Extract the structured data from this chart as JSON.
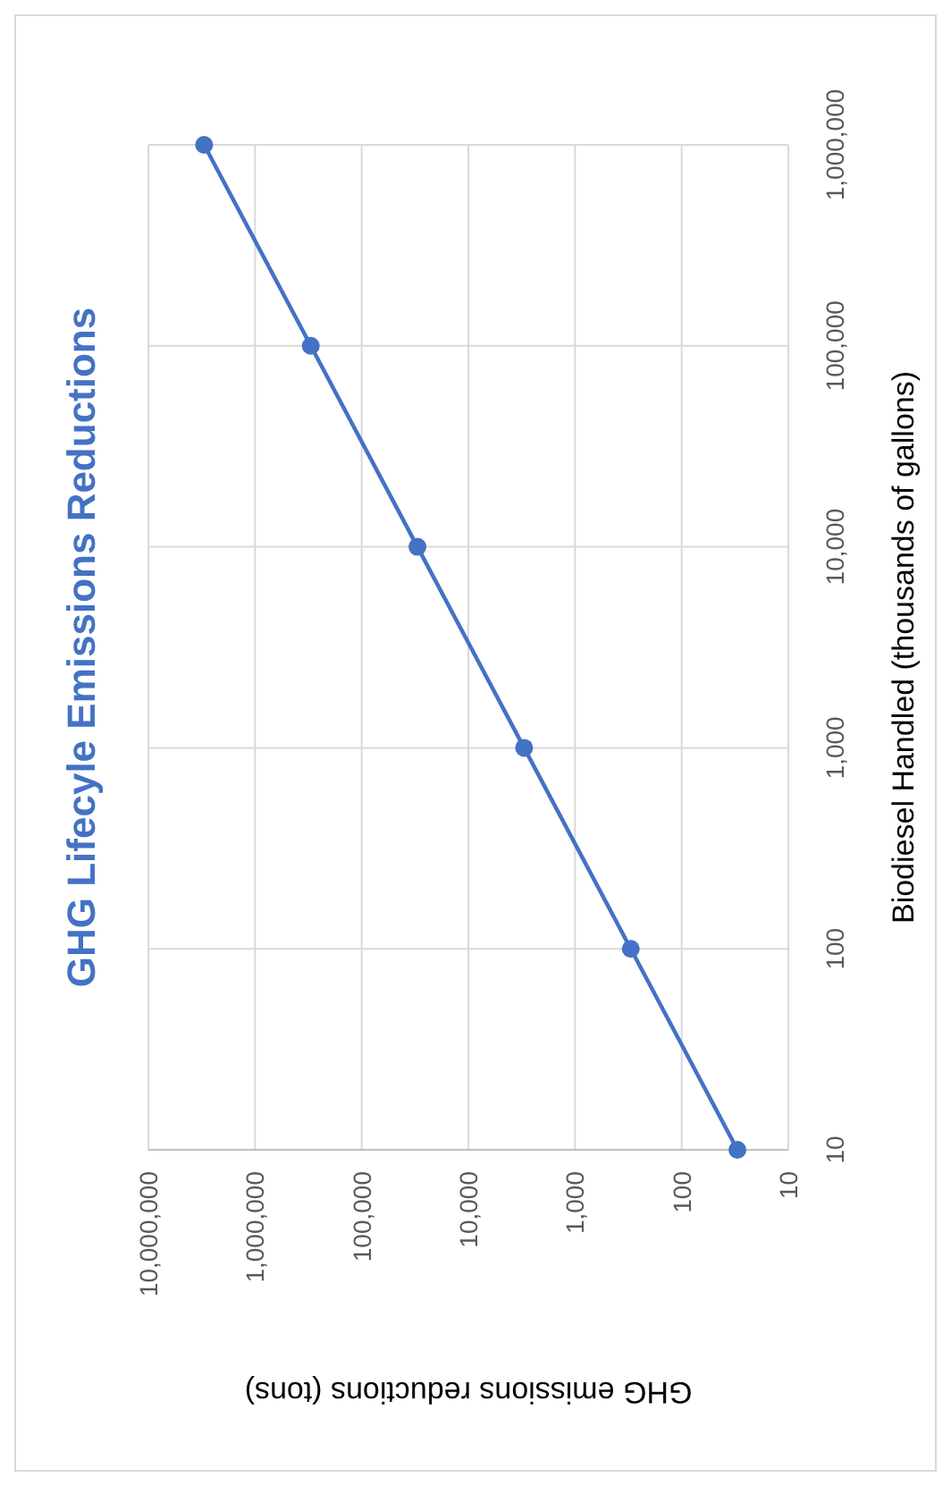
{
  "chart_data": {
    "type": "line",
    "title": "GHG Lifecyle Emissions Reductions",
    "xlabel": "GHG emissions reductions (tons)",
    "ylabel": "Biodiesel Handled (thousands of gallons)",
    "x": [
      30,
      300,
      3000,
      30000,
      300000,
      3000000
    ],
    "series": [
      {
        "color": "#4472c4",
        "values": [
          10,
          100,
          1000,
          10000,
          100000,
          1000000
        ]
      }
    ],
    "log": "xy",
    "grid": true,
    "marker": "circle",
    "line_style": "solid",
    "xlim": [
      10000000,
      10
    ],
    "xticks": [
      {
        "value": 10000000,
        "label": "10,000,000"
      },
      {
        "value": 1000000,
        "label": "1,000,000"
      },
      {
        "value": 100000,
        "label": "100,000"
      },
      {
        "value": 10000,
        "label": "10,000"
      },
      {
        "value": 1000,
        "label": "1,000"
      },
      {
        "value": 100,
        "label": "100"
      },
      {
        "value": 10,
        "label": "10"
      }
    ],
    "ylim": [
      10,
      1000000
    ],
    "yticks": [
      {
        "value": 10,
        "label": "10"
      },
      {
        "value": 100,
        "label": "100"
      },
      {
        "value": 1000,
        "label": "1,000"
      },
      {
        "value": 10000,
        "label": "10,000"
      },
      {
        "value": 100000,
        "label": "100,000"
      },
      {
        "value": 1000000,
        "label": "1,000,000"
      }
    ]
  }
}
